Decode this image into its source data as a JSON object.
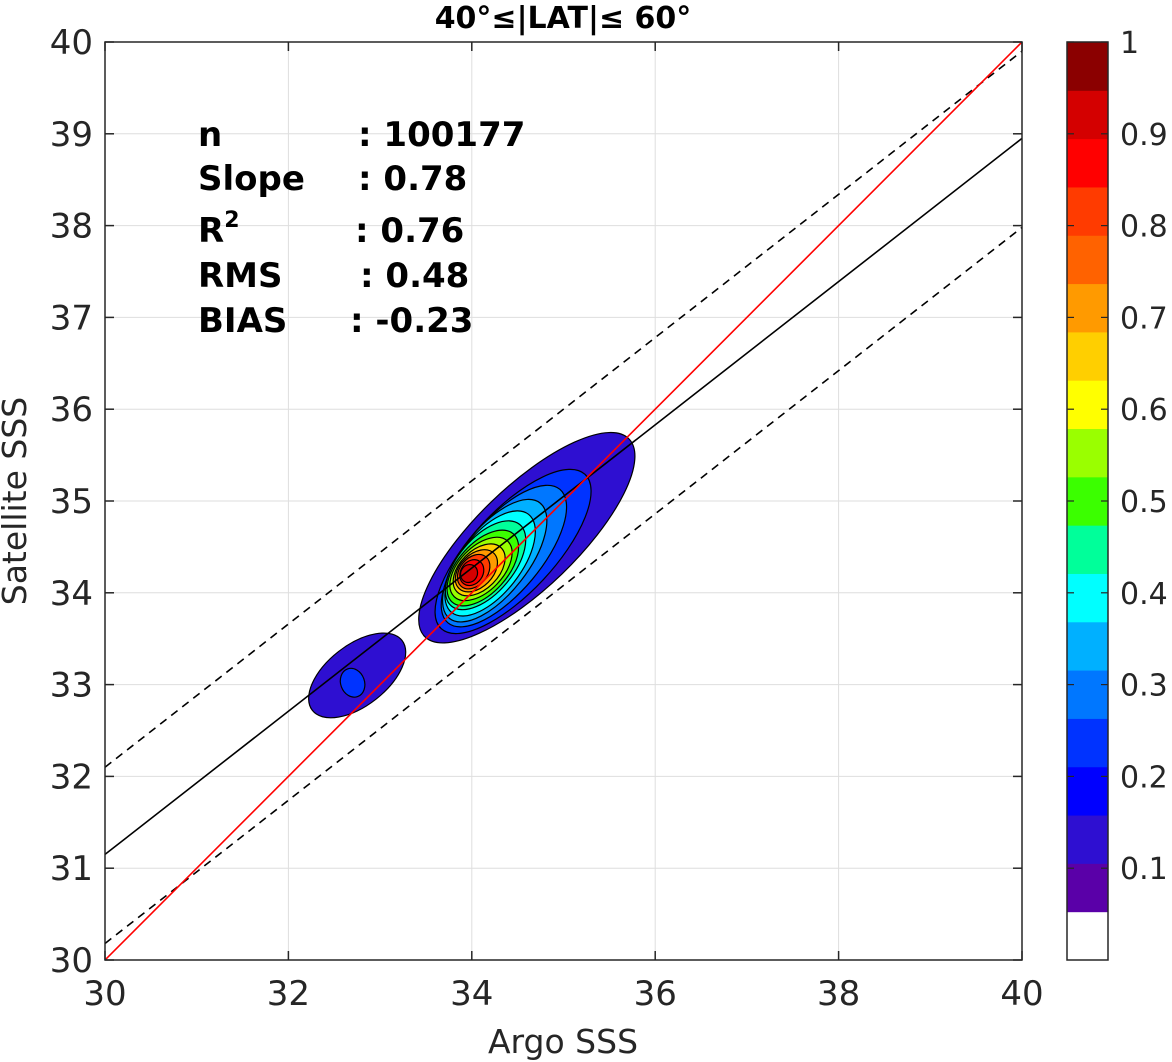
{
  "chart_data": {
    "type": "contour",
    "title": "40°≤|LAT|≤ 60°",
    "xlabel": "Argo SSS",
    "ylabel": "Satellite SSS",
    "xlim": [
      30,
      40
    ],
    "ylim": [
      30,
      40
    ],
    "xticks": [
      "30",
      "32",
      "34",
      "36",
      "38",
      "40"
    ],
    "yticks": [
      "30",
      "31",
      "32",
      "33",
      "34",
      "35",
      "36",
      "37",
      "38",
      "39",
      "40"
    ],
    "grid": true,
    "stats": [
      {
        "label": "n",
        "value": ": 100177"
      },
      {
        "label": "Slope",
        "value": ": 0.78"
      },
      {
        "label": "R",
        "sup": "2",
        "value": ": 0.76"
      },
      {
        "label": "RMS",
        "value": ": 0.48"
      },
      {
        "label": "BIAS",
        "value": ": -0.23"
      }
    ],
    "lines": {
      "one_to_one": {
        "slope": 1,
        "intercept": 0,
        "color": "#ff0000"
      },
      "fit": {
        "slope": 0.78,
        "intercept": 7.75,
        "color": "#000000"
      },
      "fit_upper_dashed": {
        "slope": 0.78,
        "intercept": 8.7,
        "color": "#000000"
      },
      "fit_lower_dashed": {
        "slope": 0.78,
        "intercept": 6.78,
        "color": "#000000"
      }
    },
    "density_clusters": [
      {
        "center": [
          34.05,
          34.2
        ],
        "peak": 1.0
      },
      {
        "center": [
          32.65,
          33.0
        ],
        "peak": 0.2
      }
    ],
    "colorbar": {
      "min": 0,
      "max": 1,
      "tick_labels": [
        "0.1",
        "0.2",
        "0.3",
        "0.4",
        "0.5",
        "0.6",
        "0.7",
        "0.8",
        "0.9",
        "1"
      ],
      "tick_values": [
        0.1,
        0.2,
        0.3,
        0.4,
        0.5,
        0.6,
        0.7,
        0.8,
        0.9,
        1.0
      ],
      "colors": [
        "#ffffff",
        "#5a00a8",
        "#2e0fd1",
        "#0000ff",
        "#0033ff",
        "#0077ff",
        "#00b0ff",
        "#00ffff",
        "#00ff9a",
        "#3bff00",
        "#9aff00",
        "#ffff00",
        "#ffcf00",
        "#ff9a00",
        "#ff6200",
        "#ff3b00",
        "#ff0000",
        "#d40000",
        "#8b0000"
      ]
    }
  }
}
